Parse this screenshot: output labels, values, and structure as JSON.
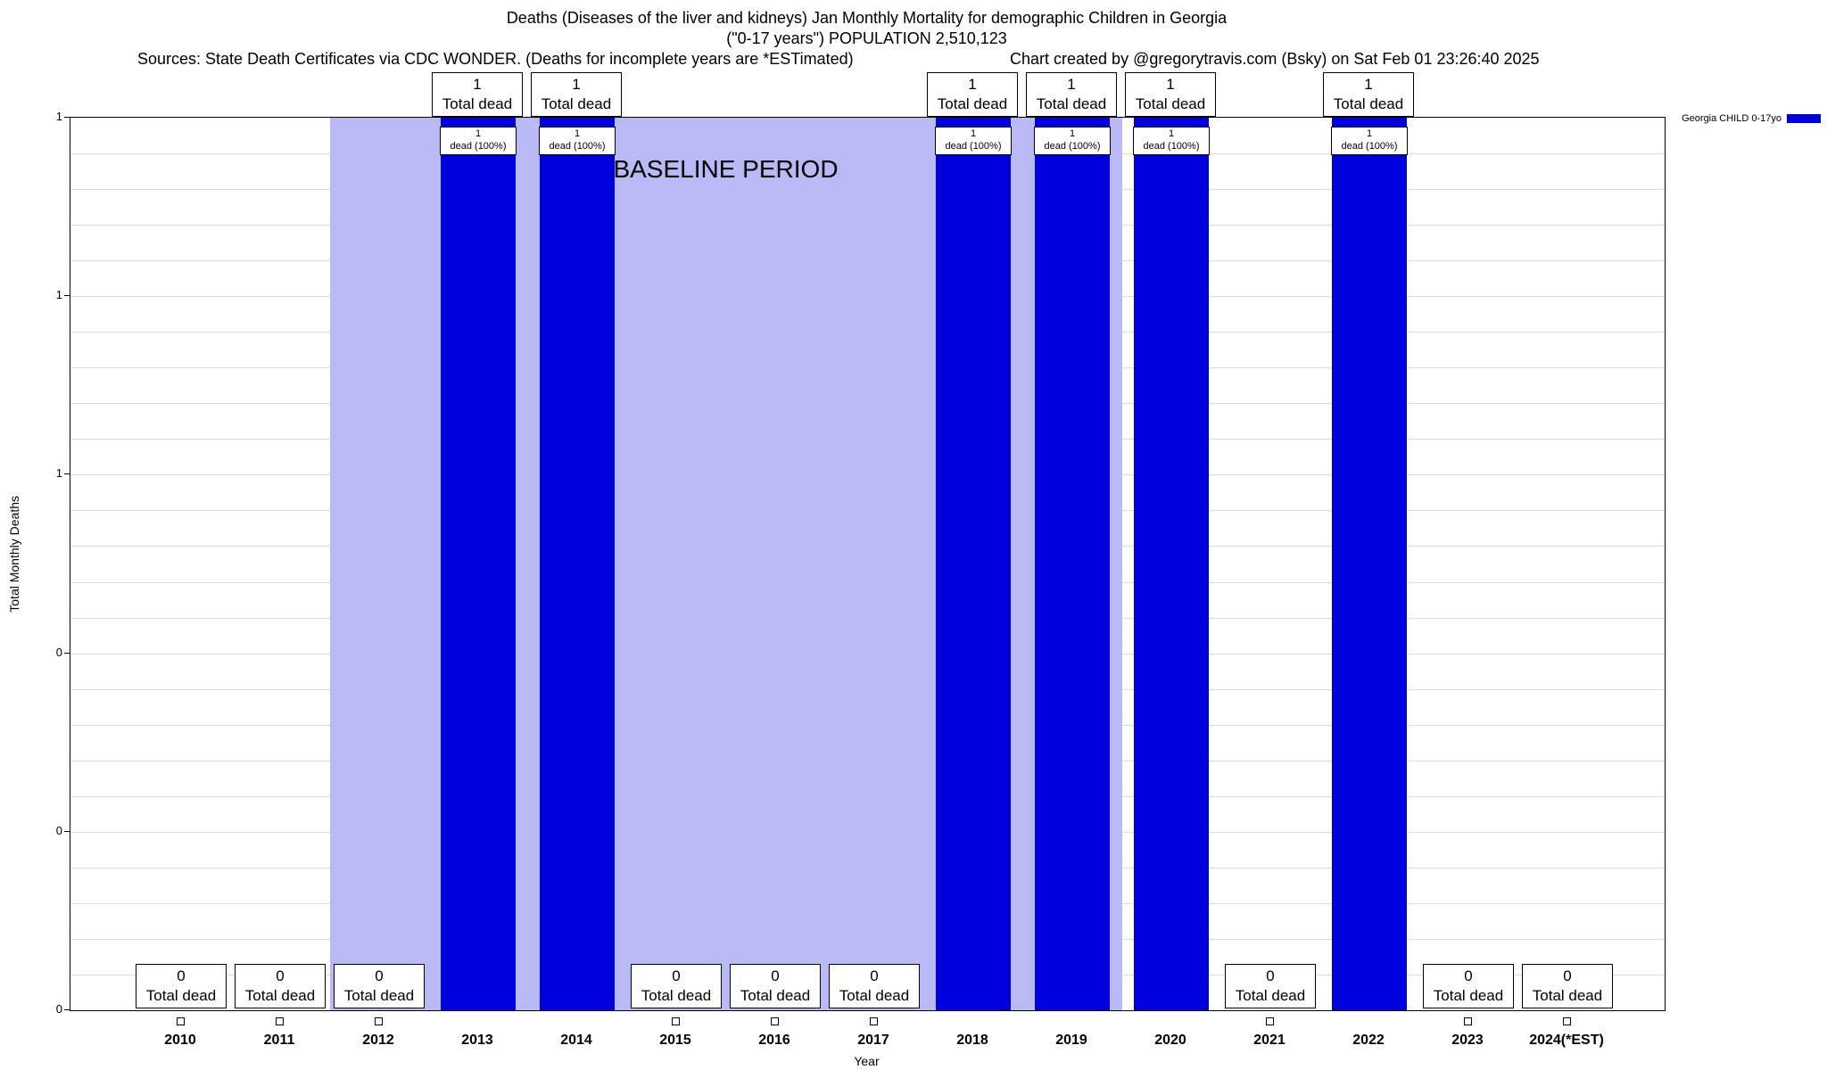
{
  "header": {
    "title_line1": "Deaths (Diseases of the liver and kidneys) Jan Monthly Mortality for demographic Children in Georgia",
    "title_line2": "(\"0-17 years\") POPULATION 2,510,123",
    "sources": "Sources: State Death Certificates via CDC WONDER. (Deaths for incomplete years are *ESTimated)",
    "credit": "Chart created by @gregorytravis.com (Bsky) on Sat Feb 01 23:26:40 2025"
  },
  "legend": {
    "label": "Georgia CHILD 0-17yo",
    "color": "#0000dd"
  },
  "chart_data": {
    "type": "bar",
    "title": "Deaths (Diseases of the liver and kidneys) Jan Monthly Mortality for demographic Children in Georgia (\"0-17 years\") POPULATION 2,510,123",
    "xlabel": "Year",
    "ylabel": "Total Monthly Deaths",
    "categories": [
      "2010",
      "2011",
      "2012",
      "2013",
      "2014",
      "2015",
      "2016",
      "2017",
      "2018",
      "2019",
      "2020",
      "2021",
      "2022",
      "2023",
      "2024(*EST)"
    ],
    "values": [
      0,
      0,
      0,
      1,
      1,
      0,
      0,
      0,
      1,
      1,
      1,
      0,
      1,
      0,
      0
    ],
    "ylim": [
      0,
      1
    ],
    "ytick_labels_top_to_bottom": [
      "1",
      "1",
      "1",
      "0",
      "0",
      "0"
    ],
    "bar_color": "#0000dd",
    "grid": true,
    "legend_position": "top-right",
    "baseline_band": {
      "label": "BASELINE PERIOD",
      "start_year": "2012",
      "end_year": "2019",
      "color": "#b9b9f6"
    },
    "annotations": {
      "total_dead_boxes": {
        "nonzero_line1": "1",
        "zero_line1": "0",
        "line2": "Total dead"
      },
      "in_bar_boxes": {
        "line1": "1",
        "line2": "dead (100%)"
      }
    }
  }
}
